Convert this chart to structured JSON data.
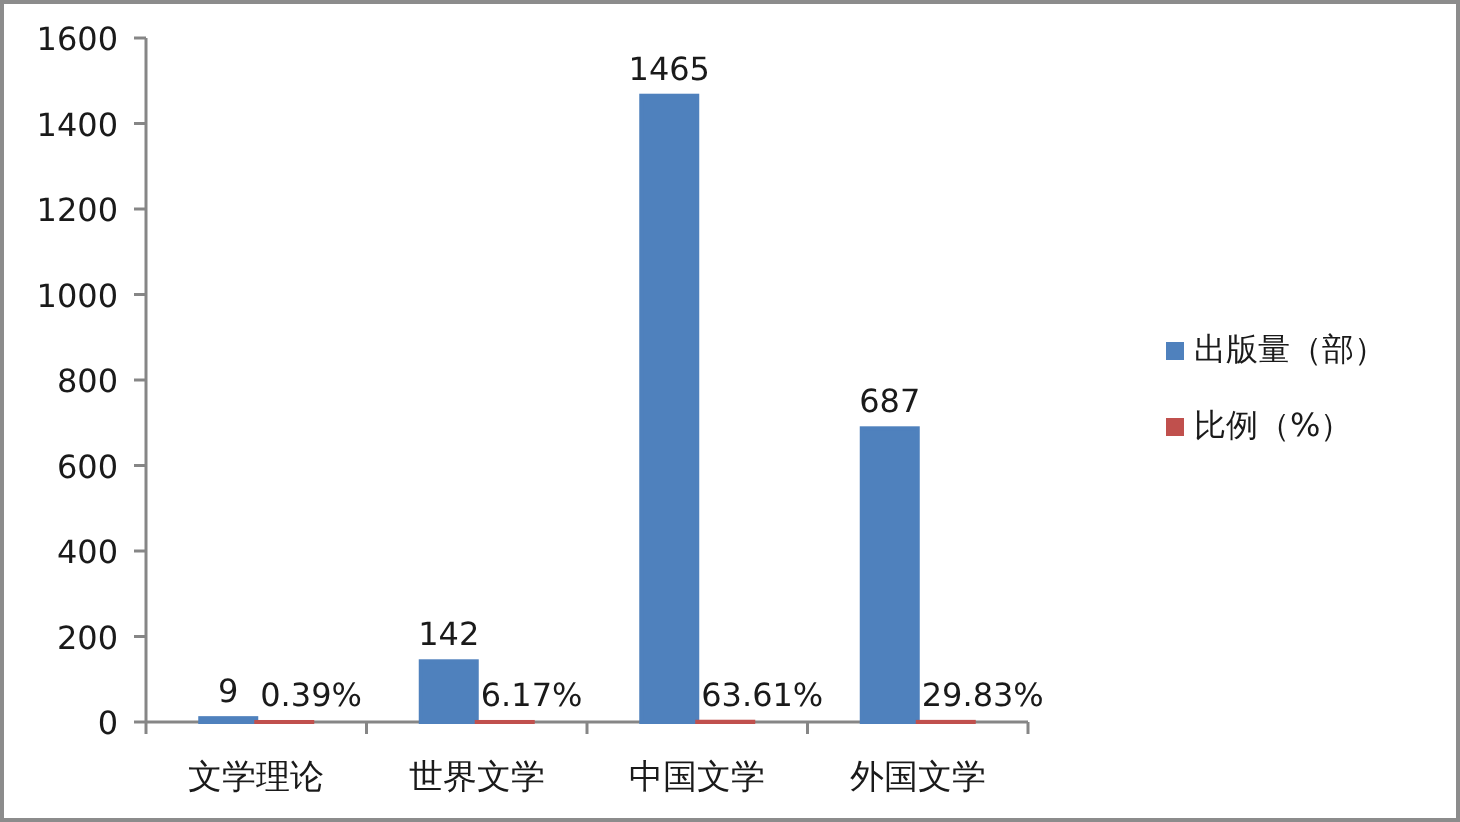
{
  "chart_data": {
    "type": "bar",
    "categories": [
      "文学理论",
      "世界文学",
      "中国文学",
      "外国文学"
    ],
    "series": [
      {
        "name": "出版量（部）",
        "color": "#4f81bd",
        "values": [
          9,
          142,
          1465,
          687
        ],
        "value_labels": [
          "9",
          "142",
          "1465",
          "687"
        ]
      },
      {
        "name": "比例（%）",
        "color": "#c0504d",
        "values": [
          0.0039,
          0.0617,
          0.6361,
          0.2983
        ],
        "value_labels": [
          "0.39%",
          "6.17%",
          "63.61%",
          "29.83%"
        ]
      }
    ],
    "ylim": [
      0,
      1600
    ],
    "yticks": [
      0,
      200,
      400,
      600,
      800,
      1000,
      1200,
      1400,
      1600
    ],
    "legend": "right"
  }
}
